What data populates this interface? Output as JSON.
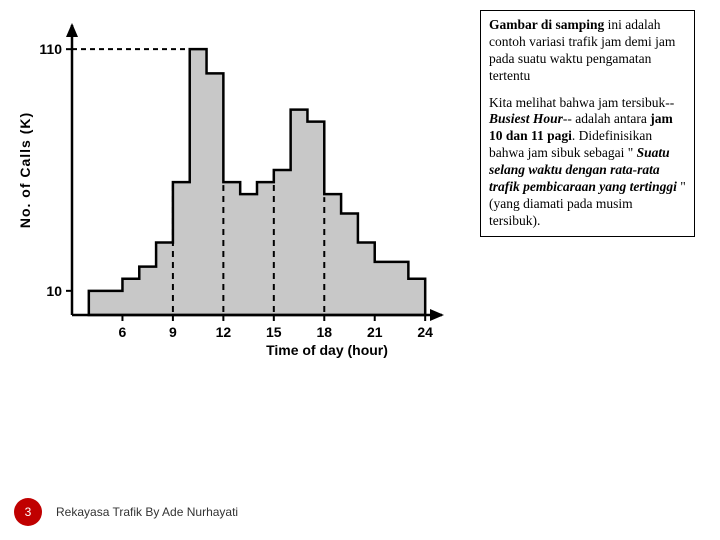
{
  "chart": {
    "type": "step-histogram",
    "y_axis_label": "No. of Calls (K)",
    "x_axis_label": "Time of day (hour)",
    "y_ticks": [
      {
        "label": "110",
        "value": 110
      },
      {
        "label": "10",
        "value": 10
      }
    ],
    "x_ticks": [
      {
        "label": "6",
        "value": 6
      },
      {
        "label": "9",
        "value": 9
      },
      {
        "label": "12",
        "value": 12
      },
      {
        "label": "15",
        "value": 15
      },
      {
        "label": "18",
        "value": 18
      },
      {
        "label": "21",
        "value": 21
      },
      {
        "label": "24",
        "value": 24
      }
    ],
    "y_min": 0,
    "y_max": 120,
    "x_min": 3,
    "x_max": 25,
    "bar_color": "#c8c8c8",
    "outline_color": "#000000",
    "background_color": "#ffffff",
    "dashed_ref_y": 110,
    "dashed_ref_xend": 10,
    "bottom_hatch_hours": [
      9,
      12,
      15,
      18
    ],
    "steps": [
      {
        "hour": 4,
        "calls": 10
      },
      {
        "hour": 5,
        "calls": 10
      },
      {
        "hour": 6,
        "calls": 15
      },
      {
        "hour": 7,
        "calls": 20
      },
      {
        "hour": 8,
        "calls": 30
      },
      {
        "hour": 9,
        "calls": 55
      },
      {
        "hour": 10,
        "calls": 110
      },
      {
        "hour": 11,
        "calls": 100
      },
      {
        "hour": 12,
        "calls": 55
      },
      {
        "hour": 13,
        "calls": 50
      },
      {
        "hour": 14,
        "calls": 55
      },
      {
        "hour": 15,
        "calls": 60
      },
      {
        "hour": 16,
        "calls": 85
      },
      {
        "hour": 17,
        "calls": 80
      },
      {
        "hour": 18,
        "calls": 50
      },
      {
        "hour": 19,
        "calls": 42
      },
      {
        "hour": 20,
        "calls": 30
      },
      {
        "hour": 21,
        "calls": 22
      },
      {
        "hour": 22,
        "calls": 22
      },
      {
        "hour": 23,
        "calls": 15
      }
    ],
    "label_fontsize": 14,
    "tick_fontsize": 14
  },
  "textbox": {
    "p1_strong": "Gambar di samping",
    "p1_rest": " ini adalah contoh variasi trafik jam demi jam pada suatu waktu pengamatan tertentu",
    "p2_a": "Kita melihat bahwa jam tersibuk--",
    "p2_em1": "Busiest Hour",
    "p2_b": "-- adalah antara ",
    "p2_strong1": "jam 10 dan 11 pagi",
    "p2_c": ". Didefinisikan bahwa jam sibuk sebagai \" ",
    "p2_em2": "Suatu selang waktu dengan rata-rata trafik pembicaraan yang tertinggi",
    "p2_d": " \" (yang diamati pada musim tersibuk)."
  },
  "footer": {
    "page": "3",
    "credit": "Rekayasa Trafik By Ade Nurhayati"
  },
  "colors": {
    "page_badge_bg": "#c00000",
    "page_badge_fg": "#ffffff"
  }
}
